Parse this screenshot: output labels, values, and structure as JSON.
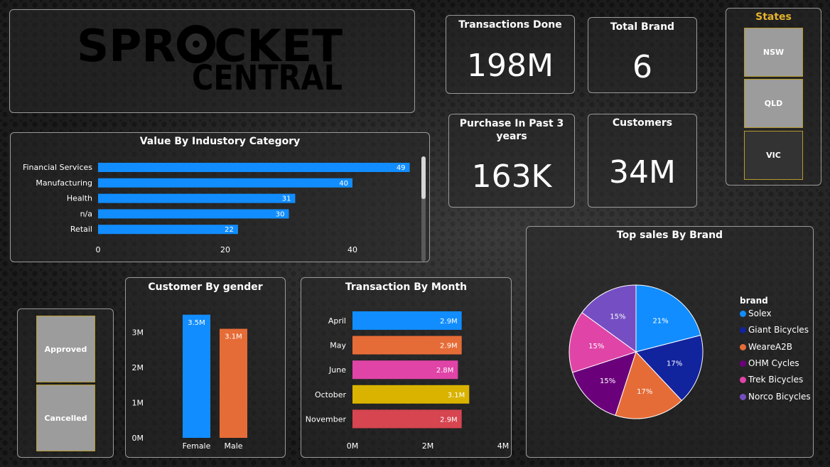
{
  "logo": {
    "line1": "SPROCKET",
    "line2": "CENTRAL"
  },
  "kpis": {
    "transactions": {
      "label": "Transactions Done",
      "value": "198M"
    },
    "total_brand": {
      "label": "Total Brand",
      "value": "6"
    },
    "purchase": {
      "label": "Purchase In Past 3 years",
      "value": "163K"
    },
    "customers": {
      "label": "Customers",
      "value": "34M"
    }
  },
  "states_slicer": {
    "title": "States",
    "options": [
      {
        "label": "NSW",
        "selected": true
      },
      {
        "label": "QLD",
        "selected": true
      },
      {
        "label": "VIC",
        "selected": false
      }
    ]
  },
  "status_slicer": {
    "options": [
      {
        "label": "Approved",
        "selected": true
      },
      {
        "label": "Cancelled",
        "selected": true
      }
    ]
  },
  "colors": {
    "blue": "#118dff",
    "orange": "#e66c37",
    "pink": "#e044a7",
    "gold": "#d9b300",
    "red": "#d64550",
    "navy": "#12239e",
    "purple": "#6b007b",
    "violet": "#744ec2",
    "states_title": "#e6b42e"
  },
  "chart_data": [
    {
      "type": "bar",
      "orientation": "horizontal",
      "title": "Value By Industory Category",
      "categories": [
        "Financial Services",
        "Manufacturing",
        "Health",
        "n/a",
        "Retail"
      ],
      "values": [
        49,
        40,
        31,
        30,
        22
      ],
      "data_labels": [
        "49",
        "40",
        "31",
        "30",
        "22"
      ],
      "xticks": [
        0,
        20,
        40
      ],
      "xtick_labels": [
        "0",
        "20",
        "40"
      ],
      "xlim": [
        0,
        50
      ],
      "color": "#118dff"
    },
    {
      "type": "bar",
      "orientation": "vertical",
      "title": "Customer By gender",
      "categories": [
        "Female",
        "Male"
      ],
      "values": [
        3.5,
        3.1
      ],
      "data_labels": [
        "3.5M",
        "3.1M"
      ],
      "colors": [
        "#118dff",
        "#e66c37"
      ],
      "yticks": [
        0,
        1,
        2,
        3
      ],
      "ytick_labels": [
        "0M",
        "1M",
        "2M",
        "3M"
      ],
      "ylim": [
        0,
        3.5
      ]
    },
    {
      "type": "bar",
      "orientation": "horizontal",
      "title": "Transaction By Month",
      "categories": [
        "April",
        "May",
        "June",
        "October",
        "November"
      ],
      "values": [
        2.9,
        2.9,
        2.8,
        3.1,
        2.9
      ],
      "data_labels": [
        "2.9M",
        "2.9M",
        "2.8M",
        "3.1M",
        "2.9M"
      ],
      "colors": [
        "#118dff",
        "#e66c37",
        "#e044a7",
        "#d9b300",
        "#d64550"
      ],
      "xticks": [
        0,
        2,
        4
      ],
      "xtick_labels": [
        "0M",
        "2M",
        "4M"
      ],
      "xlim": [
        0,
        4
      ]
    },
    {
      "type": "pie",
      "title": "Top sales By Brand",
      "legend_title": "brand",
      "legend_position": "right",
      "slices": [
        {
          "name": "Solex",
          "value": 21,
          "label": "21%",
          "color": "#118dff"
        },
        {
          "name": "Giant Bicycles",
          "value": 17,
          "label": "17%",
          "color": "#12239e"
        },
        {
          "name": "WeareA2B",
          "value": 17,
          "label": "17%",
          "color": "#e66c37"
        },
        {
          "name": "OHM Cycles",
          "value": 15,
          "label": "15%",
          "color": "#6b007b"
        },
        {
          "name": "Trek Bicycles",
          "value": 15,
          "label": "15%",
          "color": "#e044a7"
        },
        {
          "name": "Norco Bicycles",
          "value": 15,
          "label": "15%",
          "color": "#744ec2"
        }
      ]
    }
  ]
}
